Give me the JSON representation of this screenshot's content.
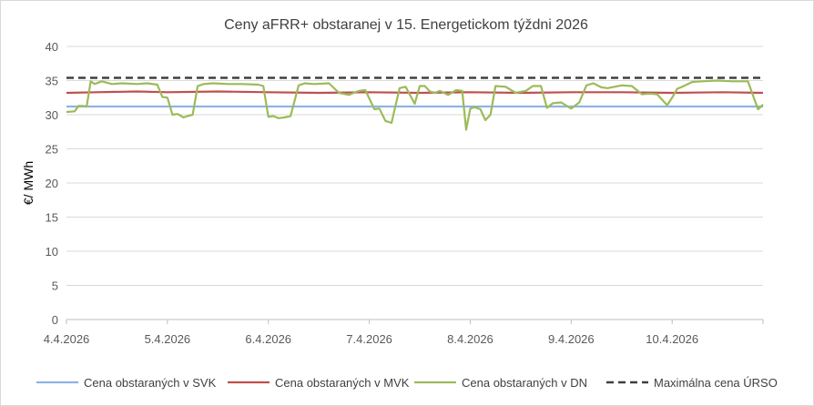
{
  "chart_data": {
    "type": "line",
    "title": "Ceny aFRR+ obstaranej v 15. Energetickom týždni 2026",
    "xlabel": "",
    "ylabel": "€/ MWh",
    "ylim": [
      0,
      40
    ],
    "y_ticks": [
      "0",
      "5",
      "10",
      "15",
      "20",
      "25",
      "30",
      "35",
      "40"
    ],
    "x_ticks": [
      "4.4.2026",
      "5.4.2026",
      "6.4.2026",
      "7.4.2026",
      "8.4.2026",
      "9.4.2026",
      "10.4.2026"
    ],
    "x_range_days": [
      0,
      6.9
    ],
    "grid": "horizontal",
    "legend_position": "bottom",
    "series": [
      {
        "name": "Cena obstaraných v SVK",
        "color": "#8eb4e3",
        "style": "solid",
        "x": [
          0,
          6.9
        ],
        "values": [
          31.2,
          31.2
        ]
      },
      {
        "name": "Cena obstaraných v MVK",
        "color": "#c0504d",
        "style": "solid",
        "x": [
          0,
          0.3,
          0.7,
          1.0,
          1.5,
          2.0,
          2.5,
          3.0,
          3.5,
          4.0,
          4.5,
          5.0,
          5.5,
          6.0,
          6.5,
          6.9
        ],
        "values": [
          33.2,
          33.3,
          33.4,
          33.3,
          33.4,
          33.3,
          33.2,
          33.3,
          33.2,
          33.3,
          33.2,
          33.3,
          33.3,
          33.2,
          33.3,
          33.2
        ]
      },
      {
        "name": "Cena obstaraných v DN",
        "color": "#9bbb59",
        "style": "solid",
        "x": [
          0,
          0.08,
          0.12,
          0.16,
          0.2,
          0.24,
          0.28,
          0.35,
          0.45,
          0.55,
          0.7,
          0.8,
          0.9,
          0.95,
          1.0,
          1.05,
          1.1,
          1.16,
          1.2,
          1.25,
          1.3,
          1.36,
          1.45,
          1.6,
          1.75,
          1.9,
          1.95,
          2.0,
          2.05,
          2.1,
          2.16,
          2.22,
          2.3,
          2.36,
          2.45,
          2.6,
          2.7,
          2.8,
          2.86,
          2.9,
          2.96,
          3.05,
          3.1,
          3.16,
          3.22,
          3.3,
          3.36,
          3.45,
          3.5,
          3.55,
          3.6,
          3.65,
          3.7,
          3.78,
          3.86,
          3.92,
          3.96,
          4.0,
          4.04,
          4.1,
          4.15,
          4.2,
          4.25,
          4.35,
          4.45,
          4.55,
          4.62,
          4.7,
          4.76,
          4.82,
          4.9,
          5.0,
          5.08,
          5.15,
          5.22,
          5.3,
          5.36,
          5.5,
          5.6,
          5.7,
          5.78,
          5.85,
          5.95,
          6.0,
          6.05,
          6.1,
          6.2,
          6.3,
          6.45,
          6.6,
          6.75,
          6.85,
          6.88,
          6.9
        ],
        "values": [
          30.4,
          30.5,
          31.3,
          31.3,
          31.2,
          34.9,
          34.5,
          34.9,
          34.5,
          34.6,
          34.5,
          34.6,
          34.4,
          32.6,
          32.5,
          30.0,
          30.1,
          29.6,
          29.8,
          30.0,
          34.2,
          34.5,
          34.6,
          34.5,
          34.5,
          34.4,
          34.2,
          29.7,
          29.8,
          29.5,
          29.6,
          29.8,
          34.3,
          34.6,
          34.5,
          34.6,
          33.2,
          32.9,
          33.3,
          33.5,
          33.6,
          30.8,
          30.9,
          29.1,
          28.8,
          33.9,
          34.1,
          31.6,
          34.2,
          34.2,
          33.4,
          33.2,
          33.5,
          32.9,
          33.6,
          33.5,
          27.8,
          30.9,
          31.1,
          30.8,
          29.2,
          30.0,
          34.2,
          34.1,
          33.2,
          33.5,
          34.2,
          34.2,
          31.0,
          31.7,
          31.8,
          30.9,
          31.8,
          34.3,
          34.6,
          34.0,
          33.9,
          34.3,
          34.2,
          33.0,
          33.1,
          33.0,
          31.4,
          32.5,
          33.8,
          34.1,
          34.8,
          34.9,
          35.0,
          34.9,
          34.9,
          30.8,
          31.2,
          31.5
        ]
      },
      {
        "name": "Maximálna cena ÚRSO",
        "color": "#404040",
        "style": "dashed",
        "x": [
          0,
          6.9
        ],
        "values": [
          35.4,
          35.4
        ]
      }
    ]
  }
}
